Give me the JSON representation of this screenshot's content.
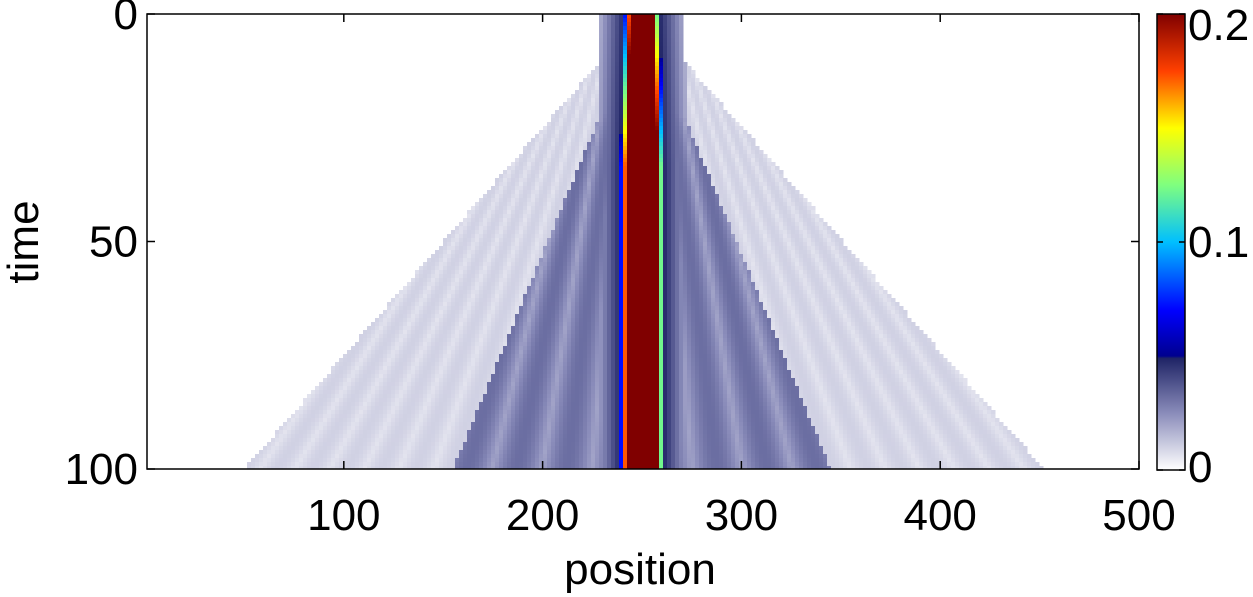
{
  "chart_data": {
    "type": "heatmap",
    "title": "",
    "xlabel": "position",
    "ylabel": "time",
    "xlim": [
      1,
      500
    ],
    "ylim": [
      0,
      100
    ],
    "y_direction": "downward",
    "xticks": [
      100,
      200,
      300,
      400,
      500
    ],
    "yticks": [
      0,
      50,
      100
    ],
    "colorbar": {
      "range": [
        0,
        0.2
      ],
      "ticks": [
        0,
        0.1,
        0.2
      ],
      "tick_labels": [
        "0",
        "0.1",
        "0.2"
      ],
      "colormap": "white-to-darkblue below 0.05, jet above",
      "stops": [
        {
          "value": 0.0,
          "color": "#ffffff"
        },
        {
          "value": 0.025,
          "color": "#8a8cba"
        },
        {
          "value": 0.049,
          "color": "#1f2466"
        },
        {
          "value": 0.05,
          "color": "#00008f"
        },
        {
          "value": 0.07,
          "color": "#0000ff"
        },
        {
          "value": 0.1,
          "color": "#00bfff"
        },
        {
          "value": 0.125,
          "color": "#7fff7f"
        },
        {
          "value": 0.15,
          "color": "#ffff00"
        },
        {
          "value": 0.175,
          "color": "#ff4000"
        },
        {
          "value": 0.2,
          "color": "#800000"
        }
      ]
    },
    "features": {
      "central_peak": {
        "center_position": 250,
        "half_width_at_time_0": 6,
        "half_width_late": 8,
        "value": 0.2
      },
      "light_cone": {
        "apex_position": 250,
        "apex_time": 0,
        "left_edge_at_time_100": 50,
        "right_edge_at_time_100": 452,
        "background_value": 0.006
      },
      "inner_cone": {
        "left_edge_at_time_100": 155,
        "right_edge_at_time_100": 345,
        "background_value": 0.02
      }
    },
    "grid": false,
    "legend": "none"
  }
}
